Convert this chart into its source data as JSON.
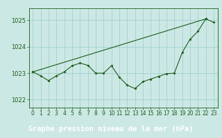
{
  "xlabel": "Graphe pression niveau de la mer (hPa)",
  "xlim": [
    -0.5,
    23.5
  ],
  "ylim": [
    1021.7,
    1025.45
  ],
  "yticks": [
    1022,
    1023,
    1024,
    1025
  ],
  "xticks": [
    0,
    1,
    2,
    3,
    4,
    5,
    6,
    7,
    8,
    9,
    10,
    11,
    12,
    13,
    14,
    15,
    16,
    17,
    18,
    19,
    20,
    21,
    22,
    23
  ],
  "bg_color": "#cce8e4",
  "grid_color": "#99cccc",
  "line_color": "#1a5c1a",
  "label_bar_color": "#2d6b2d",
  "label_text_color": "#ffffff",
  "series1": [
    [
      0,
      1023.05
    ],
    [
      1,
      1022.9
    ],
    [
      2,
      1022.72
    ],
    [
      3,
      1022.9
    ],
    [
      4,
      1023.05
    ],
    [
      5,
      1023.28
    ],
    [
      6,
      1023.38
    ],
    [
      7,
      1023.3
    ],
    [
      8,
      1023.0
    ],
    [
      9,
      1023.0
    ],
    [
      10,
      1023.28
    ],
    [
      11,
      1022.85
    ],
    [
      12,
      1022.55
    ],
    [
      13,
      1022.42
    ],
    [
      14,
      1022.68
    ],
    [
      15,
      1022.78
    ],
    [
      16,
      1022.88
    ],
    [
      17,
      1022.98
    ],
    [
      18,
      1023.0
    ],
    [
      19,
      1023.78
    ],
    [
      20,
      1024.28
    ],
    [
      21,
      1024.58
    ],
    [
      22,
      1025.05
    ],
    [
      23,
      1024.92
    ]
  ],
  "series2_straight": [
    [
      0,
      1023.05
    ],
    [
      22,
      1025.05
    ]
  ],
  "tick_fontsize": 5.5,
  "label_fontsize": 7.5
}
